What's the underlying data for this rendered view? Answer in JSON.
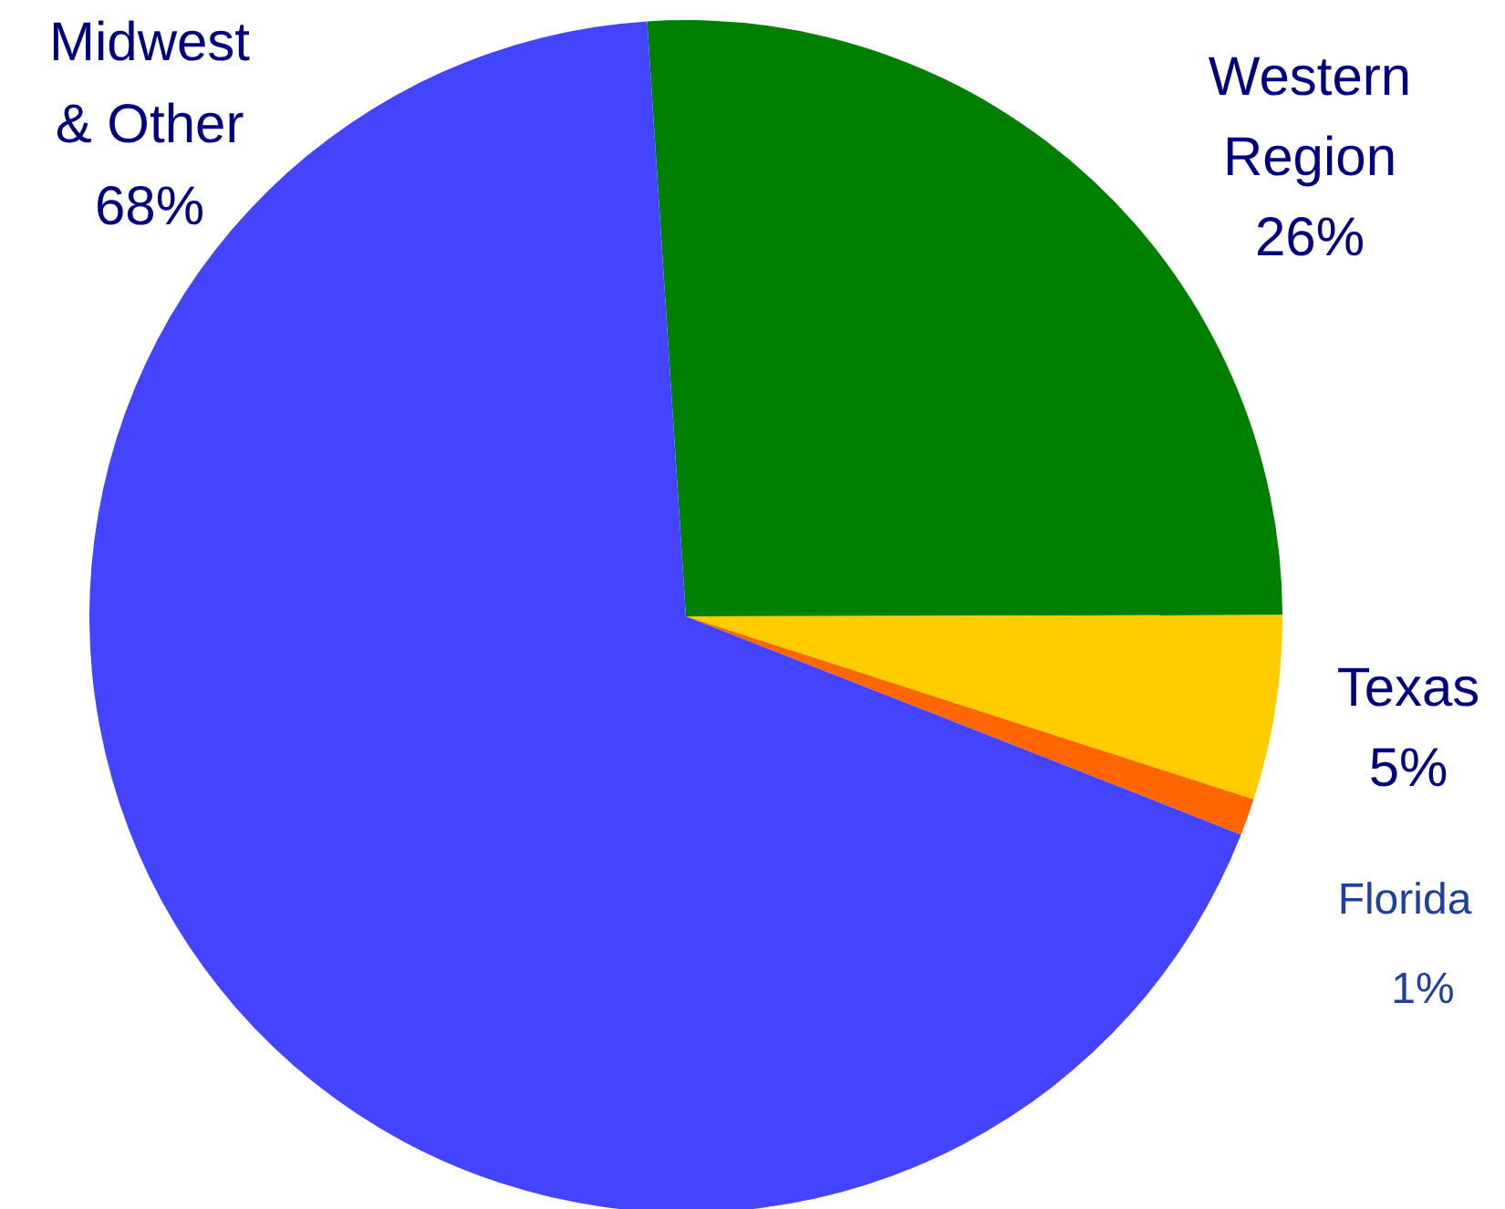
{
  "chart_data": {
    "type": "pie",
    "categories": [
      "Western Region",
      "Texas",
      "Florida",
      "Midwest & Other"
    ],
    "values": [
      26,
      5,
      1,
      68
    ],
    "value_labels": [
      "26%",
      "5%",
      "1%",
      "68%"
    ],
    "colors": [
      "#008000",
      "#ffcc00",
      "#ff6600",
      "#4444ff"
    ]
  }
}
